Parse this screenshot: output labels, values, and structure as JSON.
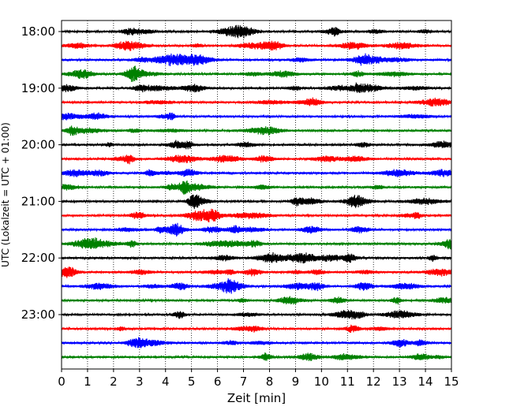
{
  "chart_data": {
    "type": "line",
    "subtype": "helicorder",
    "title": "",
    "xlabel": "Zeit  [min]",
    "ylabel": "UTC (Lokalzeit = UTC + 01:00)",
    "xlim": [
      0,
      15
    ],
    "x_ticks": [
      "0",
      "1",
      "2",
      "3",
      "4",
      "5",
      "6",
      "7",
      "8",
      "9",
      "10",
      "11",
      "12",
      "13",
      "14",
      "15"
    ],
    "y_ticks": [
      "18:00",
      "19:00",
      "20:00",
      "21:00",
      "22:00",
      "23:00"
    ],
    "traces_per_hour": 4,
    "trace_count": 24,
    "trace_colors": [
      "#000000",
      "#ff0000",
      "#0000ff",
      "#008000"
    ],
    "vertical_grid": true,
    "grid_style": "dotted"
  }
}
